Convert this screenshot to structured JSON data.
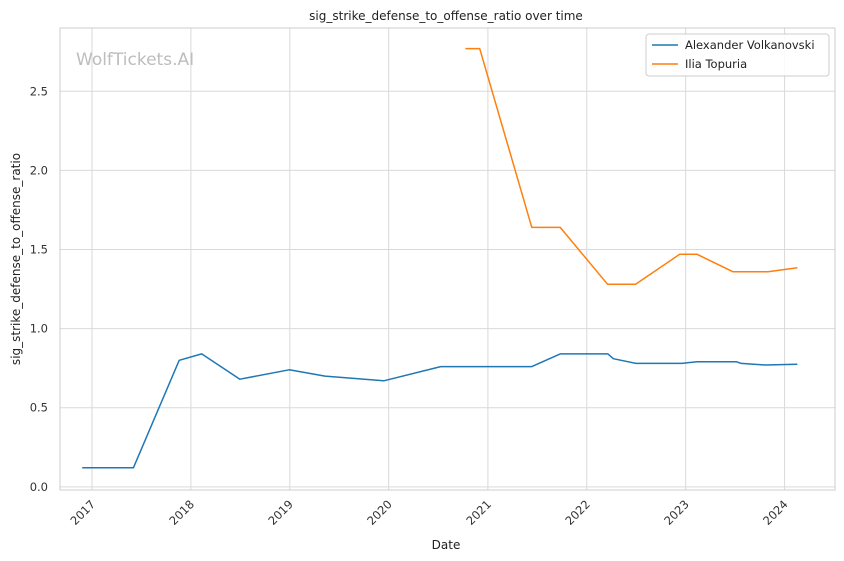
{
  "watermark": "WolfTickets.AI",
  "chart_data": {
    "type": "line",
    "title": "sig_strike_defense_to_offense_ratio over time",
    "xlabel": "Date",
    "ylabel": "sig_strike_defense_to_offense_ratio",
    "x_ticks": [
      "2017",
      "2018",
      "2019",
      "2020",
      "2021",
      "2022",
      "2023",
      "2024"
    ],
    "y_ticks": [
      "0.0",
      "0.5",
      "1.0",
      "1.5",
      "2.0",
      "2.5"
    ],
    "xlim": [
      "2016-09-05",
      "2024-07-05"
    ],
    "ylim": [
      -0.02,
      2.9
    ],
    "grid": true,
    "legend_position": "top-right",
    "series": [
      {
        "name": "Alexander Volkanovski",
        "color": "#1f77b4",
        "points": [
          [
            "2016-11-26",
            0.12
          ],
          [
            "2017-06-03",
            0.12
          ],
          [
            "2017-11-19",
            0.8
          ],
          [
            "2018-02-10",
            0.84
          ],
          [
            "2018-07-01",
            0.68
          ],
          [
            "2018-12-30",
            0.74
          ],
          [
            "2019-05-11",
            0.7
          ],
          [
            "2019-12-14",
            0.67
          ],
          [
            "2020-07-11",
            0.76
          ],
          [
            "2021-06-12",
            0.76
          ],
          [
            "2021-09-25",
            0.84
          ],
          [
            "2022-03-20",
            0.84
          ],
          [
            "2022-04-09",
            0.81
          ],
          [
            "2022-07-02",
            0.78
          ],
          [
            "2022-12-17",
            0.78
          ],
          [
            "2023-02-12",
            0.79
          ],
          [
            "2023-07-08",
            0.79
          ],
          [
            "2023-07-25",
            0.78
          ],
          [
            "2023-10-21",
            0.77
          ],
          [
            "2024-02-17",
            0.775
          ]
        ]
      },
      {
        "name": "Ilia Topuria",
        "color": "#ff7f0e",
        "points": [
          [
            "2020-10-10",
            2.77
          ],
          [
            "2020-12-02",
            2.77
          ],
          [
            "2021-06-12",
            1.64
          ],
          [
            "2021-09-25",
            1.64
          ],
          [
            "2022-03-19",
            1.28
          ],
          [
            "2022-06-30",
            1.28
          ],
          [
            "2022-12-10",
            1.47
          ],
          [
            "2023-02-12",
            1.47
          ],
          [
            "2023-06-24",
            1.36
          ],
          [
            "2023-11-01",
            1.36
          ],
          [
            "2024-02-17",
            1.385
          ]
        ]
      }
    ]
  }
}
